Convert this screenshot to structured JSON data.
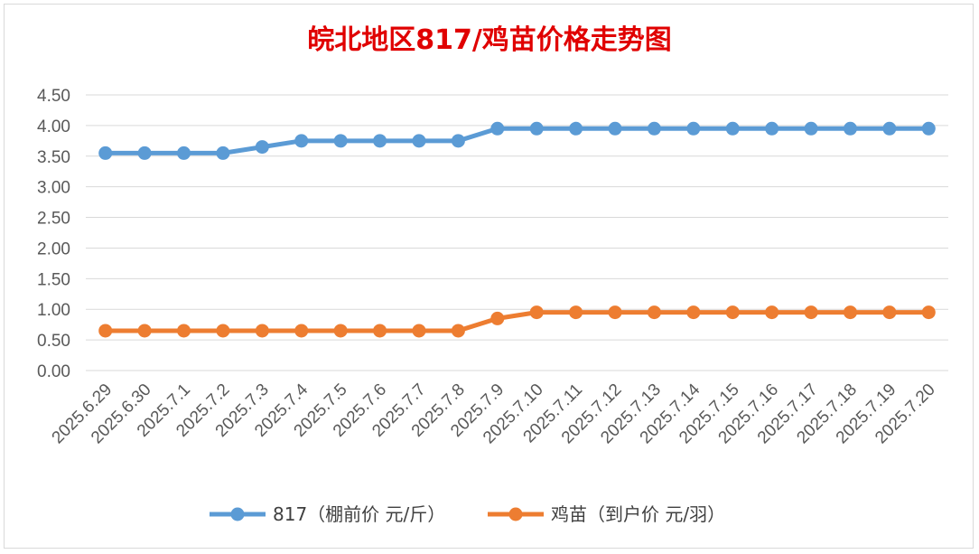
{
  "chart_data": {
    "type": "line",
    "title": "皖北地区817/鸡苗价格走势图",
    "xlabel": "",
    "ylabel": "",
    "categories": [
      "2025.6.29",
      "2025.6.30",
      "2025.7.1",
      "2025.7.2",
      "2025.7.3",
      "2025.7.4",
      "2025.7.5",
      "2025.7.6",
      "2025.7.7",
      "2025.7.8",
      "2025.7.9",
      "2025.7.10",
      "2025.7.11",
      "2025.7.12",
      "2025.7.13",
      "2025.7.14",
      "2025.7.15",
      "2025.7.16",
      "2025.7.17",
      "2025.7.18",
      "2025.7.19",
      "2025.7.20"
    ],
    "y_ticks": [
      "0.00",
      "0.50",
      "1.00",
      "1.50",
      "2.00",
      "2.50",
      "3.00",
      "3.50",
      "4.00",
      "4.50"
    ],
    "ylim": [
      0,
      4.5
    ],
    "grid": true,
    "legend_position": "bottom",
    "series": [
      {
        "name": "817（棚前价 元/斤）",
        "color": "#5b9bd5",
        "values": [
          3.55,
          3.55,
          3.55,
          3.55,
          3.65,
          3.75,
          3.75,
          3.75,
          3.75,
          3.75,
          3.95,
          3.95,
          3.95,
          3.95,
          3.95,
          3.95,
          3.95,
          3.95,
          3.95,
          3.95,
          3.95,
          3.95
        ]
      },
      {
        "name": "鸡苗（到户价 元/羽）",
        "color": "#ed7d31",
        "values": [
          0.65,
          0.65,
          0.65,
          0.65,
          0.65,
          0.65,
          0.65,
          0.65,
          0.65,
          0.65,
          0.85,
          0.95,
          0.95,
          0.95,
          0.95,
          0.95,
          0.95,
          0.95,
          0.95,
          0.95,
          0.95,
          0.95
        ]
      }
    ]
  }
}
